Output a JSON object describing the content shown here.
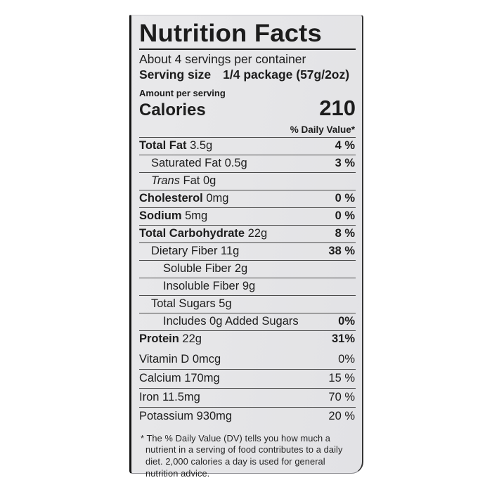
{
  "colors": {
    "page_bg": "#ffffff",
    "label_bg": "#e6e6e8",
    "ink": "#1c1c1c"
  },
  "label": {
    "title": "Nutrition Facts",
    "servings_per_container": "About 4 servings per container",
    "serving_size_label": "Serving size",
    "serving_size_value": "1/4 package (57g/2oz)",
    "amount_per_serving": "Amount per serving",
    "calories_label": "Calories",
    "calories_value": "210",
    "daily_value_header": "% Daily Value*",
    "nutrients": [
      {
        "name": "Total Fat",
        "amount": "3.5g",
        "dv": "4 %",
        "bold": true,
        "indent": 0
      },
      {
        "name": "Saturated Fat",
        "amount": "0.5g",
        "dv": "3 %",
        "bold": false,
        "indent": 1
      },
      {
        "name_italic": "Trans",
        "name": "Fat",
        "amount": "0g",
        "dv": "",
        "bold": false,
        "indent": 1
      },
      {
        "name": "Cholesterol",
        "amount": "0mg",
        "dv": "0 %",
        "bold": true,
        "indent": 0
      },
      {
        "name": "Sodium",
        "amount": "5mg",
        "dv": "0 %",
        "bold": true,
        "indent": 0
      },
      {
        "name": "Total Carbohydrate",
        "amount": "22g",
        "dv": "8 %",
        "bold": true,
        "indent": 0
      },
      {
        "name": "Dietary Fiber",
        "amount": "11g",
        "dv": "38 %",
        "bold": false,
        "indent": 1
      },
      {
        "name": "Soluble Fiber",
        "amount": "2g",
        "dv": "",
        "bold": false,
        "indent": 2
      },
      {
        "name": "Insoluble Fiber",
        "amount": "9g",
        "dv": "",
        "bold": false,
        "indent": 2
      },
      {
        "name": "Total Sugars",
        "amount": "5g",
        "dv": "",
        "bold": false,
        "indent": 1
      },
      {
        "name": "Includes 0g Added Sugars",
        "amount": "",
        "dv": "0%",
        "bold": false,
        "indent": 2
      },
      {
        "name": "Protein",
        "amount": "22g",
        "dv": "31%",
        "bold": true,
        "indent": 0
      }
    ],
    "vitamins": [
      {
        "name": "Vitamin D",
        "amount": "0mcg",
        "dv": "0%"
      },
      {
        "name": "Calcium",
        "amount": "170mg",
        "dv": "15 %"
      },
      {
        "name": "Iron",
        "amount": "11.5mg",
        "dv": "70 %"
      },
      {
        "name": "Potassium",
        "amount": "930mg",
        "dv": "20 %"
      }
    ],
    "footnote": "* The % Daily Value (DV) tells you how much a nutrient in a serving of food contributes to a daily diet. 2,000 calories a day is used for general nutrition advice."
  }
}
